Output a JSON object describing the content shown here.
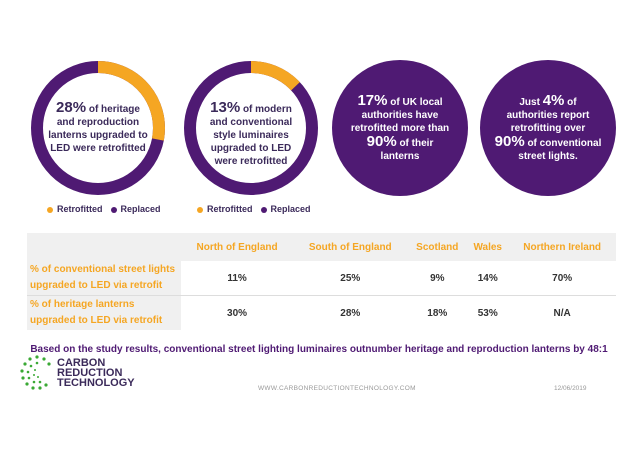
{
  "donut1": {
    "percent": "28%",
    "line1_rest": "of heritage",
    "line2": "and reproduction",
    "line3": "lanterns upgraded to",
    "line4": "LED were retrofitted",
    "value": 28
  },
  "donut2": {
    "percent": "13%",
    "line1_rest": "of modern",
    "line2": "and conventional",
    "line3": "style luminaires",
    "line4": "upgraded to LED",
    "line5": "were retrofitted",
    "value": 13
  },
  "legend": {
    "retrofitted": "Retrofitted",
    "replaced": "Replaced"
  },
  "colors": {
    "retrofitted": "#f5a623",
    "replaced": "#4f1a73"
  },
  "circle1": {
    "percent": "17%",
    "line1_rest": "of UK local",
    "line2": "authorities have",
    "line3": "retrofitted more than",
    "percent2": "90%",
    "line4_rest": "of their",
    "line5": "lanterns"
  },
  "circle2": {
    "prefix": "Just",
    "percent": "4%",
    "line1_rest": "of",
    "line2": "authorities report",
    "line3": "retrofitting over",
    "percent2": "90%",
    "line4_rest": "of conventional",
    "line5": "street lights."
  },
  "table": {
    "headers": [
      "North of England",
      "South of England",
      "Scotland",
      "Wales",
      "Northern Ireland"
    ],
    "rows": [
      {
        "label": "% of conventional street lights upgraded to LED via retrofit",
        "values": [
          "11%",
          "25%",
          "9%",
          "14%",
          "70%"
        ]
      },
      {
        "label": "% of heritage lanterns upgraded to LED via retrofit",
        "values": [
          "30%",
          "28%",
          "18%",
          "53%",
          "N/A"
        ]
      }
    ]
  },
  "summary": "Based on the study results, conventional street lighting luminaires outnumber heritage and reproduction lanterns by 48:1",
  "logo": {
    "line1": "CARBON",
    "line2": "REDUCTION",
    "line3": "TECHNOLOGY"
  },
  "footer": {
    "url": "WWW.CARBONREDUCTIONTECHNOLOGY.COM",
    "date": "12/06/2019"
  }
}
